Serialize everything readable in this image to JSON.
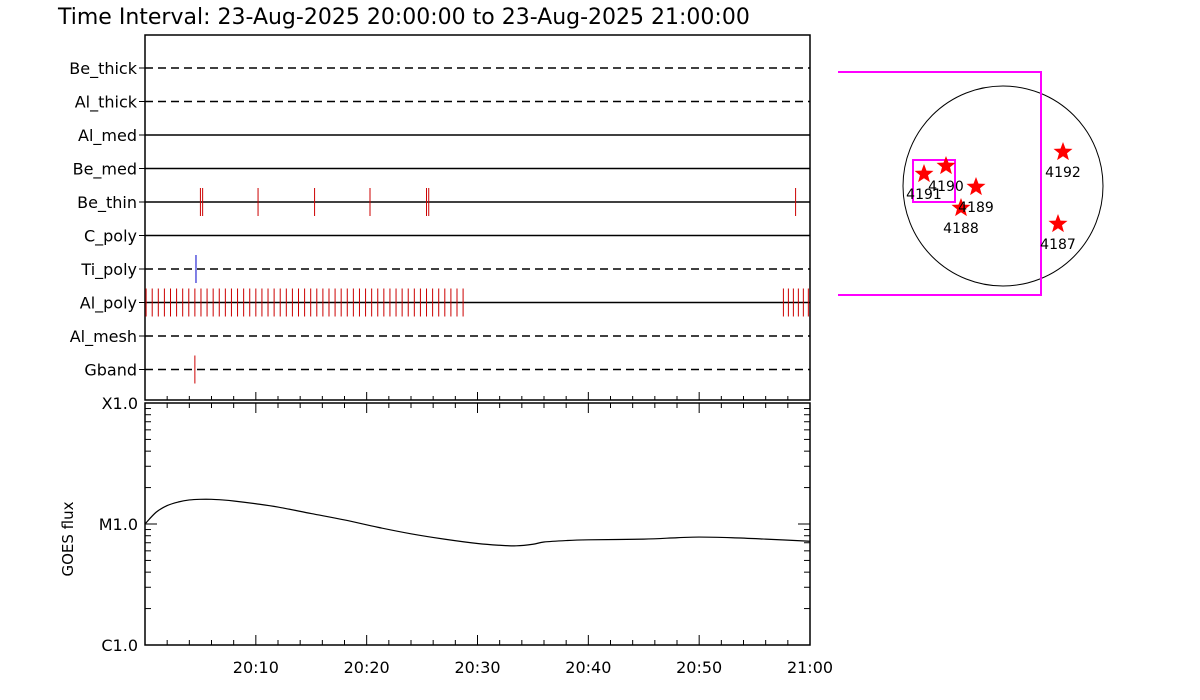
{
  "title": "Time Interval: 23-Aug-2025 20:00:00 to 23-Aug-2025 21:00:00",
  "colors": {
    "axis": "#000000",
    "filter_red": "#cc0000",
    "filter_blue": "#0000cc",
    "fov_magenta": "#ff00ff",
    "star_red": "#ff0000"
  },
  "chart_data": [
    {
      "type": "timeline",
      "name": "filter-timeline",
      "x_range_minutes": [
        0,
        60
      ],
      "rows": [
        {
          "label": "Be_thick",
          "line": "dashed",
          "events": []
        },
        {
          "label": "Al_thick",
          "line": "dashed",
          "events": []
        },
        {
          "label": "Al_med",
          "line": "solid",
          "events": []
        },
        {
          "label": "Be_med",
          "line": "solid",
          "events": []
        },
        {
          "label": "Be_thin",
          "line": "solid",
          "color": "red",
          "events": [
            5.0,
            5.2,
            10.2,
            15.3,
            20.3,
            25.4,
            25.6,
            58.7
          ]
        },
        {
          "label": "C_poly",
          "line": "solid",
          "events": []
        },
        {
          "label": "Ti_poly",
          "line": "dashed",
          "color": "blue",
          "events": [
            4.6
          ]
        },
        {
          "label": "Al_poly",
          "line": "solid",
          "color": "red",
          "event_groups": [
            {
              "start": 0.1,
              "end": 29.1,
              "step": 0.55
            },
            {
              "start": 57.6,
              "end": 59.9,
              "step": 0.45
            }
          ]
        },
        {
          "label": "Al_mesh",
          "line": "dashed",
          "events": []
        },
        {
          "label": "Gband",
          "line": "dashed",
          "color": "red",
          "events": [
            4.5
          ]
        }
      ]
    },
    {
      "type": "line",
      "name": "goes-flux",
      "ylabel": "GOES flux",
      "y_scale": "log",
      "y_ticks": [
        "C1.0",
        "M1.0",
        "X1.0"
      ],
      "x_ticks": [
        "20:10",
        "20:20",
        "20:30",
        "20:40",
        "20:50",
        "21:00"
      ],
      "x_minutes": [
        0,
        1,
        2,
        3,
        4,
        5,
        6,
        7,
        8,
        10,
        12,
        15,
        18,
        21,
        24,
        27,
        30,
        32,
        33.5,
        35,
        36,
        38,
        40,
        45,
        48,
        50,
        53,
        56,
        60
      ],
      "y_flux_M": [
        1.0,
        1.25,
        1.42,
        1.52,
        1.58,
        1.6,
        1.6,
        1.58,
        1.55,
        1.47,
        1.38,
        1.22,
        1.08,
        0.94,
        0.83,
        0.75,
        0.69,
        0.667,
        0.66,
        0.68,
        0.71,
        0.73,
        0.74,
        0.75,
        0.77,
        0.78,
        0.77,
        0.75,
        0.72
      ]
    },
    {
      "type": "scatter",
      "name": "solar-disk-map",
      "points": [
        {
          "label": "4187",
          "x": 0.55,
          "y": -0.38
        },
        {
          "label": "4188",
          "x": -0.42,
          "y": -0.22
        },
        {
          "label": "4189",
          "x": -0.27,
          "y": -0.01
        },
        {
          "label": "4190",
          "x": -0.57,
          "y": 0.2
        },
        {
          "label": "4191",
          "x": -0.79,
          "y": 0.12
        },
        {
          "label": "4192",
          "x": 0.6,
          "y": 0.34
        }
      ]
    }
  ]
}
